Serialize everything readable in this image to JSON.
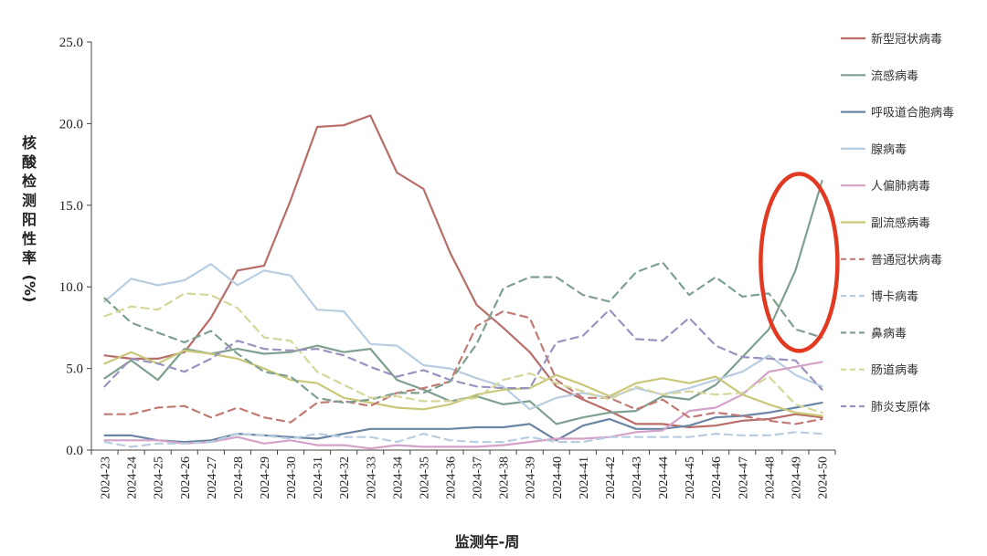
{
  "chart_data": {
    "type": "line",
    "title": "",
    "xlabel": "监测年-周",
    "ylabel": "核酸检测阳性率(%)",
    "ylim": [
      0,
      25
    ],
    "yticks": [
      "0.0",
      "5.0",
      "10.0",
      "15.0",
      "20.0",
      "25.0"
    ],
    "grid": false,
    "legend_position": "right",
    "categories": [
      "2024-23",
      "2024-24",
      "2024-25",
      "2024-26",
      "2024-27",
      "2024-28",
      "2024-29",
      "2024-30",
      "2024-31",
      "2024-32",
      "2024-33",
      "2024-34",
      "2024-35",
      "2024-36",
      "2024-37",
      "2024-38",
      "2024-39",
      "2024-40",
      "2024-41",
      "2024-42",
      "2024-43",
      "2024-44",
      "2024-45",
      "2024-46",
      "2024-47",
      "2024-48",
      "2024-49",
      "2024-50"
    ],
    "series": [
      {
        "name": "新型冠状病毒",
        "color": "#b86d6a",
        "dash": "solid",
        "values": [
          5.8,
          5.6,
          5.6,
          6.0,
          8.1,
          11.0,
          11.3,
          15.3,
          19.8,
          19.9,
          20.5,
          17.0,
          16.0,
          12.1,
          8.9,
          7.5,
          6.0,
          3.9,
          3.1,
          2.4,
          1.6,
          1.6,
          1.4,
          1.5,
          1.8,
          1.9,
          2.2,
          2.0
        ]
      },
      {
        "name": "流感病毒",
        "color": "#7fa08e",
        "dash": "solid",
        "values": [
          4.4,
          5.5,
          4.3,
          6.2,
          5.9,
          6.2,
          5.9,
          6.0,
          6.4,
          6.0,
          6.2,
          4.3,
          3.7,
          3.0,
          3.3,
          2.8,
          3.0,
          1.6,
          2.0,
          2.3,
          2.4,
          3.3,
          3.1,
          4.0,
          5.7,
          7.4,
          11.0,
          16.5
        ]
      },
      {
        "name": "呼吸道合胞病毒",
        "color": "#6b86a5",
        "dash": "solid",
        "values": [
          0.9,
          0.9,
          0.6,
          0.5,
          0.6,
          1.0,
          0.9,
          0.8,
          0.7,
          1.0,
          1.3,
          1.3,
          1.3,
          1.3,
          1.4,
          1.4,
          1.6,
          0.6,
          1.5,
          1.9,
          1.3,
          1.3,
          1.5,
          2.0,
          2.1,
          2.3,
          2.6,
          2.9
        ]
      },
      {
        "name": "腺病毒",
        "color": "#b8cde0",
        "dash": "solid",
        "values": [
          9.1,
          10.5,
          10.1,
          10.4,
          11.4,
          10.1,
          11.0,
          10.7,
          8.6,
          8.5,
          6.5,
          6.4,
          5.2,
          5.0,
          4.4,
          3.9,
          2.5,
          3.2,
          3.5,
          3.2,
          3.8,
          3.4,
          3.8,
          4.3,
          4.8,
          5.8,
          4.6,
          3.9
        ]
      },
      {
        "name": "人偏肺病毒",
        "color": "#d4a1c8",
        "dash": "solid",
        "values": [
          0.6,
          0.6,
          0.6,
          0.4,
          0.5,
          0.8,
          0.4,
          0.6,
          0.3,
          0.3,
          0.1,
          0.3,
          0.2,
          0.2,
          0.2,
          0.3,
          0.5,
          0.7,
          0.7,
          0.8,
          1.1,
          1.2,
          2.4,
          2.6,
          3.4,
          4.8,
          5.1,
          5.4
        ]
      },
      {
        "name": "副流感病毒",
        "color": "#c8c878",
        "dash": "solid",
        "values": [
          5.3,
          6.0,
          5.3,
          6.1,
          5.9,
          5.6,
          5.0,
          4.3,
          4.1,
          3.2,
          2.9,
          2.6,
          2.5,
          2.8,
          3.4,
          3.7,
          3.8,
          4.6,
          4.0,
          3.3,
          4.1,
          4.4,
          4.1,
          4.5,
          3.4,
          2.8,
          2.3,
          2.1
        ]
      },
      {
        "name": "普通冠状病毒",
        "color": "#c27a74",
        "dash": "dashed",
        "values": [
          2.2,
          2.2,
          2.6,
          2.7,
          2.0,
          2.6,
          2.0,
          1.7,
          2.9,
          3.0,
          2.7,
          3.5,
          3.8,
          4.2,
          7.6,
          8.5,
          8.1,
          4.3,
          3.2,
          3.2,
          2.5,
          3.1,
          2.0,
          2.3,
          2.1,
          1.8,
          1.6,
          1.9
        ]
      },
      {
        "name": "博卡病毒",
        "color": "#b8cde0",
        "dash": "dashed",
        "values": [
          0.5,
          0.2,
          0.4,
          0.4,
          0.5,
          1.0,
          0.9,
          0.7,
          1.0,
          0.8,
          0.8,
          0.5,
          1.0,
          0.6,
          0.5,
          0.5,
          0.8,
          0.5,
          0.5,
          0.8,
          0.8,
          0.8,
          0.8,
          1.0,
          0.9,
          0.9,
          1.1,
          1.0
        ]
      },
      {
        "name": "鼻病毒",
        "color": "#7fa08e",
        "dash": "dashed",
        "values": [
          9.3,
          7.8,
          7.2,
          6.6,
          7.3,
          5.9,
          4.8,
          4.5,
          3.2,
          2.9,
          3.1,
          3.5,
          3.5,
          4.2,
          6.5,
          9.9,
          10.6,
          10.6,
          9.5,
          9.1,
          10.9,
          11.5,
          9.5,
          10.6,
          9.4,
          9.6,
          7.4,
          6.9
        ]
      },
      {
        "name": "肠道病毒",
        "color": "#d6d69a",
        "dash": "dashed",
        "values": [
          8.2,
          8.8,
          8.6,
          9.6,
          9.5,
          8.7,
          6.9,
          6.7,
          4.8,
          4.0,
          3.2,
          3.3,
          3.0,
          3.0,
          3.2,
          4.3,
          4.7,
          4.1,
          3.6,
          3.1,
          3.9,
          3.4,
          3.6,
          3.4,
          3.5,
          4.5,
          2.8,
          2.3
        ]
      },
      {
        "name": "肺炎支原体",
        "color": "#9a93bf",
        "dash": "dashed",
        "values": [
          3.9,
          5.6,
          5.3,
          4.8,
          5.6,
          6.7,
          6.2,
          6.1,
          6.2,
          5.8,
          5.1,
          4.5,
          4.9,
          4.3,
          3.9,
          3.8,
          3.8,
          6.6,
          7.0,
          8.6,
          6.8,
          6.7,
          8.1,
          6.4,
          5.7,
          5.6,
          5.5,
          3.7
        ]
      }
    ],
    "annotation": {
      "shape": "ellipse",
      "color": "#e23a22"
    }
  }
}
